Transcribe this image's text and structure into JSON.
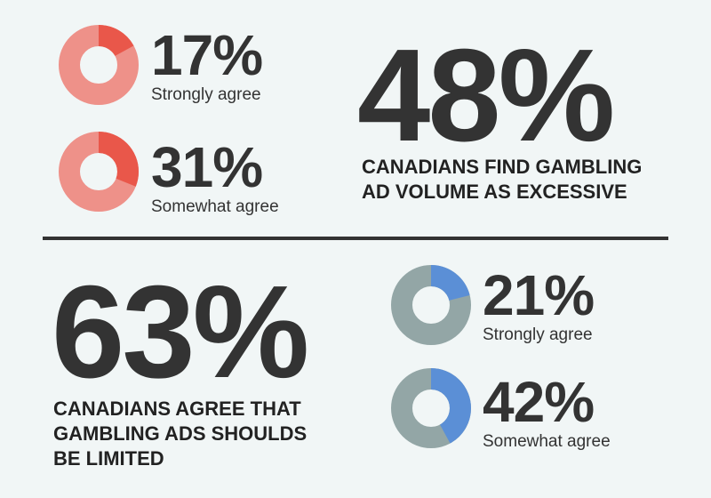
{
  "colors": {
    "top_track": "#ee9189",
    "top_fill": "#e9574a",
    "bottom_track": "#93a6a6",
    "bottom_fill": "#5b8fd6"
  },
  "top": {
    "headline": "48%",
    "caption_line1": "CANADIANS FIND GAMBLING",
    "caption_line2": "AD VOLUME AS EXCESSIVE"
  },
  "bottom": {
    "headline": "63%",
    "caption_line1": "CANADIANS AGREE THAT",
    "caption_line2": "GAMBLING ADS SHOULDS",
    "caption_line3": "BE LIMITED"
  },
  "chart_data": [
    {
      "type": "pie",
      "group": "top",
      "slices": [
        {
          "label": "Strongly agree",
          "value": 17,
          "display": "17%"
        },
        {
          "label": "Somewhat agree",
          "value": 31,
          "display": "31%"
        }
      ]
    },
    {
      "type": "pie",
      "group": "bottom",
      "slices": [
        {
          "label": "Strongly agree",
          "value": 21,
          "display": "21%"
        },
        {
          "label": "Somewhat agree",
          "value": 42,
          "display": "42%"
        }
      ]
    }
  ]
}
